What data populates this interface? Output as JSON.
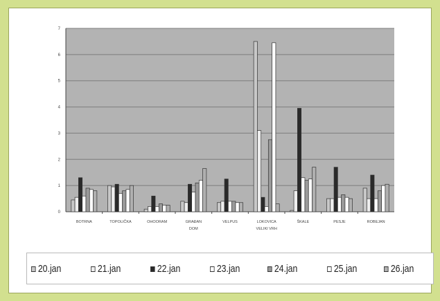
{
  "chart_data": {
    "type": "bar",
    "categories": [
      [
        "BOTRNA"
      ],
      [
        "TOPOLIČKA"
      ],
      [
        "OHOORAM"
      ],
      [
        "GRAĐAN",
        "DOM"
      ],
      [
        "VELPUS"
      ],
      [
        "LOKOVICA",
        "VELIKI VRH"
      ],
      [
        "ŠKALE"
      ],
      [
        "PESJE"
      ],
      [
        "ROBEJAN"
      ]
    ],
    "y_ticks": [
      "0",
      "1",
      "2",
      "3",
      "4",
      "5",
      "6",
      "7"
    ],
    "ylim": [
      0,
      7
    ],
    "grid": true,
    "legend_position": "bottom",
    "series": [
      {
        "name": "20.jan",
        "color": "#c8c8c8",
        "values": [
          0.45,
          1.0,
          0.1,
          0.4,
          0.35,
          6.5,
          0.05,
          0.5,
          0.9
        ]
      },
      {
        "name": "21.jan",
        "color": "#eeeeee",
        "values": [
          0.55,
          0.95,
          0.2,
          0.35,
          0.4,
          3.1,
          0.8,
          0.5,
          0.5
        ]
      },
      {
        "name": "22.jan",
        "color": "#2a2a2a",
        "values": [
          1.3,
          1.05,
          0.6,
          1.05,
          1.25,
          0.55,
          3.95,
          1.7,
          1.4
        ]
      },
      {
        "name": "23.jan",
        "color": "#ffffff",
        "values": [
          0.6,
          0.7,
          0.2,
          0.75,
          0.4,
          0.2,
          1.3,
          0.55,
          0.5
        ]
      },
      {
        "name": "24.jan",
        "color": "#9a9a9a",
        "values": [
          0.9,
          0.8,
          0.3,
          1.1,
          0.4,
          2.75,
          1.2,
          0.65,
          0.8
        ]
      },
      {
        "name": "25.jan",
        "color": "#ffffff",
        "values": [
          0.85,
          0.85,
          0.25,
          1.2,
          0.35,
          6.45,
          1.25,
          0.55,
          1.0
        ]
      },
      {
        "name": "26.jan",
        "color": "#b0b0b0",
        "values": [
          0.8,
          1.0,
          0.25,
          1.65,
          0.35,
          0.3,
          1.7,
          0.5,
          1.05
        ]
      }
    ]
  }
}
